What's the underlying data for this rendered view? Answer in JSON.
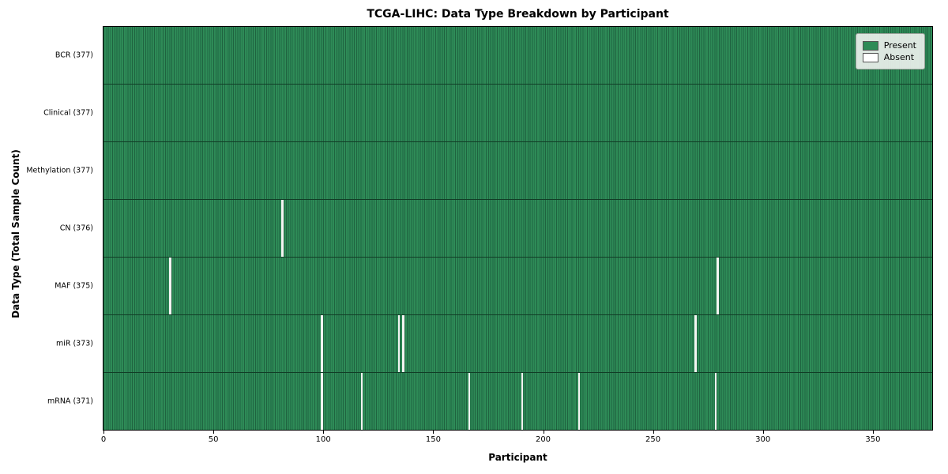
{
  "chart_data": {
    "type": "heatmap",
    "title": "TCGA-LIHC: Data Type Breakdown by Participant",
    "xlabel": "Participant",
    "ylabel": "Data Type (Total Sample Count)",
    "n_participants": 377,
    "x_ticks": [
      0,
      50,
      100,
      150,
      200,
      250,
      300,
      350
    ],
    "xlim": [
      0,
      377
    ],
    "grid": false,
    "legend_position": "upper right",
    "colors": {
      "present": "#2e8b57",
      "present_stripe": "#1f6340",
      "absent": "#f4f4f2",
      "row_divider": "#113d26"
    },
    "legend": [
      {
        "label": "Present",
        "color": "#2e8b57"
      },
      {
        "label": "Absent",
        "color": "#ffffff"
      }
    ],
    "rows": [
      {
        "label": "BCR (377)",
        "total": 377,
        "absent_participants": []
      },
      {
        "label": "Clinical (377)",
        "total": 377,
        "absent_participants": []
      },
      {
        "label": "Methylation (377)",
        "total": 377,
        "absent_participants": []
      },
      {
        "label": "CN (376)",
        "total": 376,
        "absent_participants": [
          81
        ]
      },
      {
        "label": "MAF (375)",
        "total": 375,
        "absent_participants": [
          30,
          279
        ]
      },
      {
        "label": "miR (373)",
        "total": 373,
        "absent_participants": [
          99,
          134,
          136,
          269
        ]
      },
      {
        "label": "mRNA (371)",
        "total": 371,
        "absent_participants": [
          99,
          117,
          166,
          190,
          216,
          278
        ]
      }
    ]
  }
}
